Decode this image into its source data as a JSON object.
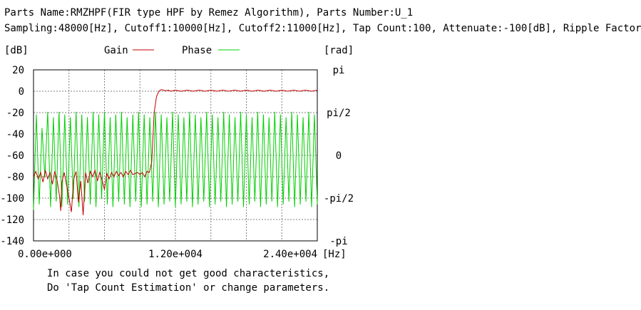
{
  "header": {
    "line1": "Parts Name:RMZHPF(FIR type HPF by Remez Algorithm), Parts Number:U_1",
    "line2": "Sampling:48000[Hz], Cutoff1:10000[Hz], Cutoff2:11000[Hz], Tap Count:100, Attenuate:-100[dB], Ripple Factor"
  },
  "note": {
    "line1": "In case you could not get good characteristics,",
    "line2": "Do 'Tap Count Estimation' or change parameters."
  },
  "colors": {
    "gain": "#c00000",
    "phase": "#00d000",
    "grid": "#808080",
    "frame": "#000000"
  },
  "chart_data": {
    "type": "line",
    "ylabel_left": "[dB]",
    "ylabel_right": "[rad]",
    "xlabel": "[Hz]",
    "legend": [
      {
        "name": "Gain",
        "color": "#c00000"
      },
      {
        "name": "Phase",
        "color": "#00d000"
      }
    ],
    "legend_placement": "top-center",
    "grid": true,
    "xlim": [
      0,
      24000
    ],
    "x_ticks": [
      0,
      12000,
      24000
    ],
    "x_tick_labels": [
      "0.00e+000",
      "1.20e+004",
      "2.40e+004"
    ],
    "ylim_left": [
      -140,
      20
    ],
    "y_left_ticks": [
      20,
      0,
      -20,
      -40,
      -60,
      -80,
      -100,
      -120,
      -140
    ],
    "y_left_tick_labels": [
      "20",
      "0",
      "-20",
      "-40",
      "-60",
      "-80",
      "-100",
      "-120",
      "-140"
    ],
    "ylim_right": [
      -3.1416,
      3.1416
    ],
    "y_right_ticks": [
      3.1416,
      1.5708,
      0,
      -1.5708,
      -3.1416
    ],
    "y_right_tick_labels": [
      "pi",
      "pi/2",
      "0",
      "-pi/2",
      "-pi"
    ],
    "series": [
      {
        "name": "Gain",
        "axis": "left",
        "x": [
          0,
          200,
          400,
          600,
          800,
          1000,
          1200,
          1400,
          1600,
          1800,
          2000,
          2200,
          2300,
          2400,
          2600,
          2800,
          3000,
          3200,
          3400,
          3600,
          3800,
          4000,
          4200,
          4400,
          4600,
          4800,
          5000,
          5200,
          5400,
          5600,
          5800,
          6000,
          6200,
          6400,
          6600,
          6800,
          7000,
          7200,
          7400,
          7600,
          7800,
          8000,
          8200,
          8400,
          8600,
          8800,
          9000,
          9200,
          9400,
          9600,
          9800,
          10000,
          10200,
          10400,
          10600,
          10800,
          11000,
          11200,
          11400,
          11600,
          12000,
          12500,
          13000,
          13500,
          14000,
          14500,
          15000,
          15500,
          16000,
          16500,
          17000,
          17500,
          18000,
          18500,
          19000,
          19500,
          20000,
          20500,
          21000,
          21500,
          22000,
          22500,
          23000,
          23500,
          24000
        ],
        "values": [
          -80,
          -75,
          -82,
          -76,
          -85,
          -74,
          -82,
          -76,
          -87,
          -75,
          -84,
          -98,
          -112,
          -85,
          -76,
          -88,
          -100,
          -113,
          -82,
          -75,
          -104,
          -84,
          -116,
          -76,
          -86,
          -75,
          -80,
          -74,
          -84,
          -76,
          -83,
          -92,
          -77,
          -82,
          -76,
          -80,
          -75,
          -79,
          -76,
          -80,
          -75,
          -78,
          -74,
          -78,
          -77,
          -76,
          -78,
          -76,
          -80,
          -75,
          -76,
          -66,
          -20,
          -5,
          0,
          1.5,
          1,
          0.5,
          1,
          0,
          1,
          0,
          1,
          0,
          1,
          0,
          1,
          0,
          1,
          0,
          1,
          0,
          1,
          0,
          1,
          0,
          1,
          0,
          1,
          0,
          1,
          0,
          1,
          0,
          1
        ]
      },
      {
        "name": "Phase",
        "axis": "right",
        "x": [
          0,
          240,
          480,
          720,
          960,
          1200,
          1440,
          1680,
          1920,
          2160,
          2400,
          2640,
          2880,
          3120,
          3360,
          3600,
          3840,
          4080,
          4320,
          4560,
          4800,
          5040,
          5280,
          5520,
          5760,
          6000,
          6240,
          6480,
          6720,
          6960,
          7200,
          7440,
          7680,
          7920,
          8160,
          8400,
          8640,
          8880,
          9120,
          9360,
          9600,
          9840,
          10080,
          10320,
          10560,
          10800,
          11040,
          11280,
          11520,
          11760,
          12000,
          12240,
          12480,
          12720,
          12960,
          13200,
          13440,
          13680,
          13920,
          14160,
          14400,
          14640,
          14880,
          15120,
          15360,
          15600,
          15840,
          16080,
          16320,
          16560,
          16800,
          17040,
          17280,
          17520,
          17760,
          18000,
          18240,
          18480,
          18720,
          18960,
          19200,
          19440,
          19680,
          19920,
          20160,
          20400,
          20640,
          20880,
          21120,
          21360,
          21600,
          21840,
          22080,
          22320,
          22560,
          22800,
          23040,
          23280,
          23520,
          23760,
          24000
        ],
        "values": [
          -2.0,
          1.5,
          -1.8,
          1.0,
          -0.8,
          1.6,
          -1.9,
          1.4,
          -1.7,
          1.6,
          -1.9,
          1.5,
          -1.8,
          1.4,
          -1.6,
          1.6,
          -1.9,
          1.5,
          -1.7,
          1.4,
          -1.8,
          1.6,
          -1.9,
          1.5,
          -1.6,
          1.6,
          -1.8,
          1.4,
          -1.9,
          1.5,
          -1.7,
          1.6,
          -1.8,
          1.4,
          -1.9,
          1.5,
          -1.7,
          1.6,
          -1.9,
          1.5,
          -1.8,
          1.4,
          -1.7,
          1.6,
          -1.9,
          1.5,
          -1.8,
          1.4,
          -1.7,
          1.6,
          -1.9,
          1.5,
          -1.8,
          1.4,
          -1.7,
          1.6,
          -1.9,
          1.5,
          -1.8,
          1.4,
          -1.7,
          1.6,
          -1.9,
          1.5,
          -1.8,
          1.4,
          -1.7,
          1.6,
          -1.9,
          1.5,
          -1.8,
          1.4,
          -1.7,
          1.6,
          -1.9,
          1.5,
          -1.8,
          1.4,
          -1.7,
          1.6,
          -1.9,
          1.5,
          -1.8,
          1.4,
          -1.7,
          1.6,
          -1.9,
          1.5,
          -1.8,
          1.4,
          -1.7,
          1.6,
          -1.9,
          1.5,
          -1.8,
          1.4,
          -1.7,
          1.6,
          -1.9,
          1.5,
          -1.8
        ]
      }
    ]
  }
}
